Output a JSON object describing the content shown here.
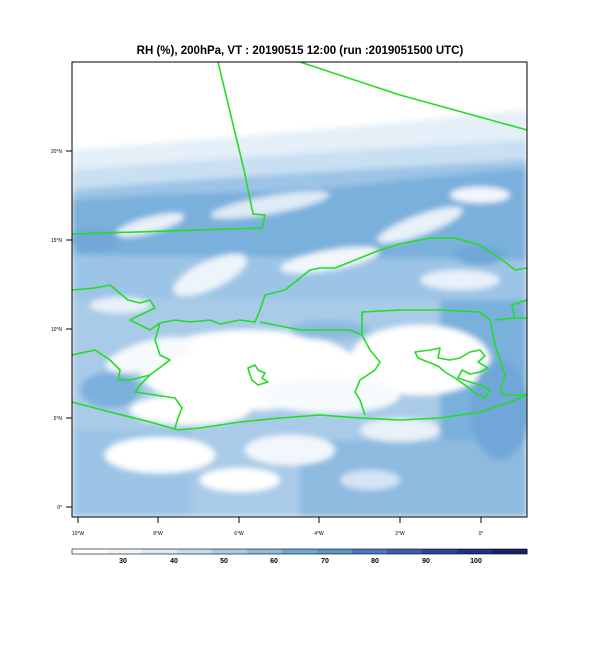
{
  "title": "RH (%), 200hPa, VT : 20190515  12:00 (run :2019051500 UTC)",
  "map": {
    "variable": "Relative humidity",
    "units": "%",
    "level": "200hPa",
    "boundary_color": "#22dd22",
    "lat_ticks": [
      "20°N",
      "15°N",
      "10°N",
      "5°N",
      "0°"
    ],
    "lon_ticks": [
      "10°W",
      "8°W",
      "6°W",
      "4°W",
      "2°W",
      "0°"
    ]
  },
  "colorbar": {
    "labels": [
      "30",
      "40",
      "50",
      "60",
      "70",
      "80",
      "90",
      "100"
    ],
    "colors": [
      "#ffffff",
      "#eef5fb",
      "#dbe9f5",
      "#c3dcf0",
      "#a8cbe8",
      "#8dbbe0",
      "#6fa7d8",
      "#5c96cc",
      "#4a7cbd",
      "#3a5eaa",
      "#2c4597",
      "#1f3183",
      "#14226b"
    ]
  }
}
